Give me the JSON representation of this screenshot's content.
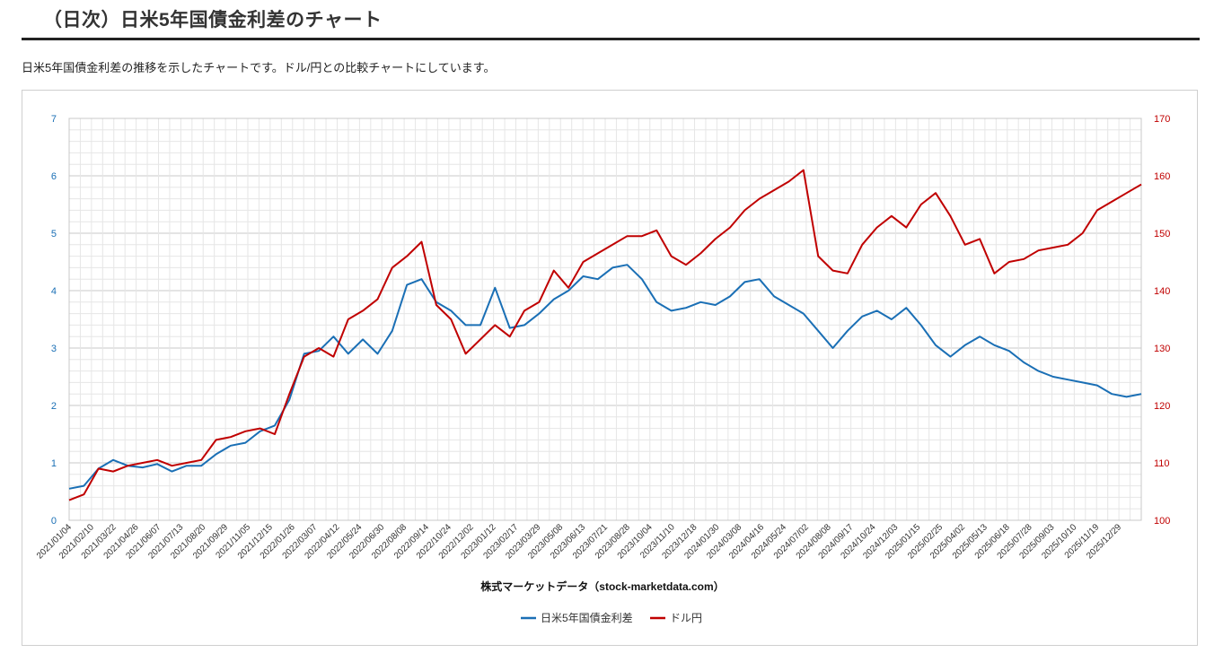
{
  "header": {
    "title": "（日次）日米5年国債金利差のチャート",
    "description": "日米5年国債金利差の推移を示したチャートです。ドル/円との比較チャートにしています。"
  },
  "chart_data": {
    "type": "line",
    "xlabel": "株式マーケットデータ（stock-marketdata.com）",
    "x_tick_labels": [
      "2021/01/04",
      "2021/02/10",
      "2021/03/22",
      "2021/04/26",
      "2021/06/07",
      "2021/07/13",
      "2021/08/20",
      "2021/09/29",
      "2021/11/05",
      "2021/12/15",
      "2022/01/26",
      "2022/03/07",
      "2022/04/12",
      "2022/05/24",
      "2022/06/30",
      "2022/08/08",
      "2022/09/14",
      "2022/10/24",
      "2022/12/02",
      "2023/01/12",
      "2023/02/17",
      "2023/03/29",
      "2023/05/08",
      "2023/06/13",
      "2023/07/21",
      "2023/08/28",
      "2023/10/04",
      "2023/11/10",
      "2023/12/18",
      "2024/01/30",
      "2024/03/08",
      "2024/04/16",
      "2024/05/24",
      "2024/07/02",
      "2024/08/08",
      "2024/09/17",
      "2024/10/24",
      "2024/12/03",
      "2025/01/15",
      "2025/02/25",
      "2025/04/02",
      "2025/05/13",
      "2025/06/18",
      "2025/07/28",
      "2025/09/03",
      "2025/10/10",
      "2025/11/19",
      "2025/12/29"
    ],
    "y_left": {
      "min": 0,
      "max": 7,
      "ticks": [
        "0",
        "1",
        "2",
        "3",
        "4",
        "5",
        "6",
        "7"
      ],
      "color": "#1a6fb5"
    },
    "y_right": {
      "min": 100,
      "max": 170,
      "ticks": [
        "100",
        "110",
        "120",
        "130",
        "140",
        "150",
        "160",
        "170"
      ],
      "color": "#c00000"
    },
    "grid": true,
    "legend_position": "bottom",
    "series": [
      {
        "name": "日米5年国債金利差",
        "axis": "left",
        "color": "#1a6fb5",
        "values": [
          0.55,
          0.6,
          0.9,
          1.05,
          0.95,
          0.92,
          0.98,
          0.85,
          0.95,
          0.95,
          1.15,
          1.3,
          1.35,
          1.55,
          1.65,
          2.1,
          2.9,
          2.95,
          3.2,
          2.9,
          3.15,
          2.9,
          3.3,
          4.1,
          4.2,
          3.8,
          3.65,
          3.4,
          3.4,
          4.05,
          3.35,
          3.4,
          3.6,
          3.85,
          4.0,
          4.25,
          4.2,
          4.4,
          4.45,
          4.2,
          3.8,
          3.65,
          3.7,
          3.8,
          3.75,
          3.9,
          4.15,
          4.2,
          3.9,
          3.75,
          3.6,
          3.3,
          3.0,
          3.3,
          3.55,
          3.65,
          3.5,
          3.7,
          3.4,
          3.05,
          2.85,
          3.05,
          3.2,
          3.05,
          2.95,
          2.75,
          2.6,
          2.5,
          2.45,
          2.4,
          2.35,
          2.2,
          2.15,
          2.2
        ]
      },
      {
        "name": "ドル円",
        "axis": "right",
        "color": "#c00000",
        "values": [
          103.5,
          104.5,
          109.0,
          108.5,
          109.5,
          110.0,
          110.5,
          109.5,
          110.0,
          110.5,
          114.0,
          114.5,
          115.5,
          116.0,
          115.0,
          122.0,
          128.5,
          130.0,
          128.5,
          135.0,
          136.5,
          138.5,
          144.0,
          146.0,
          148.5,
          137.5,
          135.0,
          129.0,
          131.5,
          134.0,
          132.0,
          136.5,
          138.0,
          143.5,
          140.5,
          145.0,
          146.5,
          148.0,
          149.5,
          149.5,
          150.5,
          146.0,
          144.5,
          146.5,
          149.0,
          151.0,
          154.0,
          156.0,
          157.5,
          159.0,
          161.0,
          146.0,
          143.5,
          143.0,
          148.0,
          151.0,
          153.0,
          151.0,
          155.0,
          157.0,
          153.0,
          148.0,
          149.0,
          143.0,
          145.0,
          145.5,
          147.0,
          147.5,
          148.0,
          150.0,
          154.0,
          155.5,
          157.0,
          158.5
        ]
      }
    ]
  }
}
